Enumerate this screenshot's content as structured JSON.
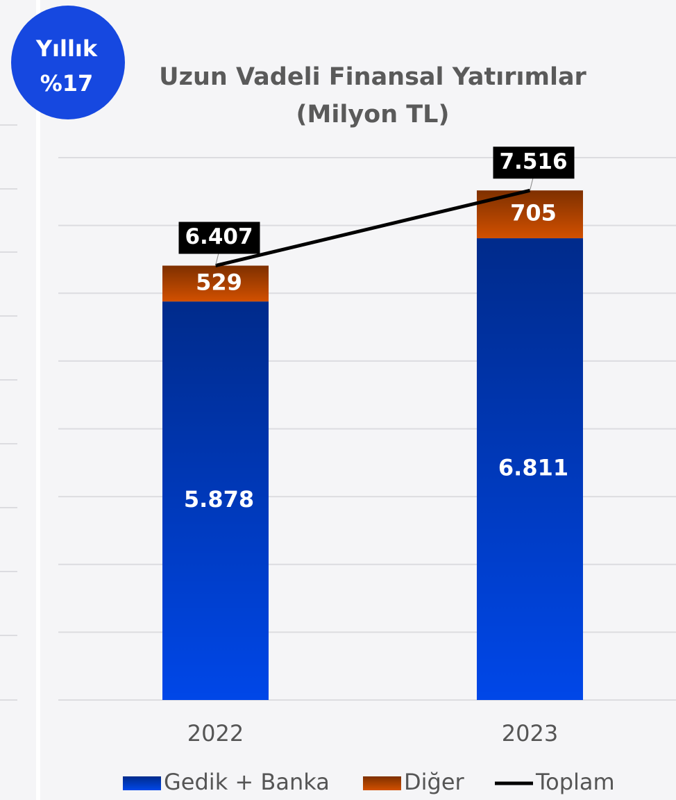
{
  "chart_data": {
    "type": "bar",
    "stacked": true,
    "badge": [
      "Yıllık",
      "%17"
    ],
    "title": "Uzun Vadeli Finansal Yatırımlar",
    "subtitle": "(Milyon TL)",
    "categories": [
      "2022",
      "2023"
    ],
    "series": [
      {
        "name": "Gedik + Banka",
        "type": "bar",
        "color": "#0047e8",
        "values": [
          5878,
          6811
        ],
        "value_labels": [
          "5.878",
          "6.811"
        ]
      },
      {
        "name": "Diğer",
        "type": "bar",
        "color": "#d25000",
        "values": [
          529,
          705
        ],
        "value_labels": [
          "529",
          "705"
        ]
      },
      {
        "name": "Toplam",
        "type": "line",
        "color": "#000000",
        "values": [
          6407,
          7516
        ],
        "value_labels": [
          "6.407",
          "7.516"
        ]
      }
    ],
    "ylim": [
      0,
      8000
    ],
    "yticks": [
      0,
      1000,
      2000,
      3000,
      4000,
      5000,
      6000,
      7000,
      8000
    ],
    "grid": true,
    "legend": "bottom"
  }
}
